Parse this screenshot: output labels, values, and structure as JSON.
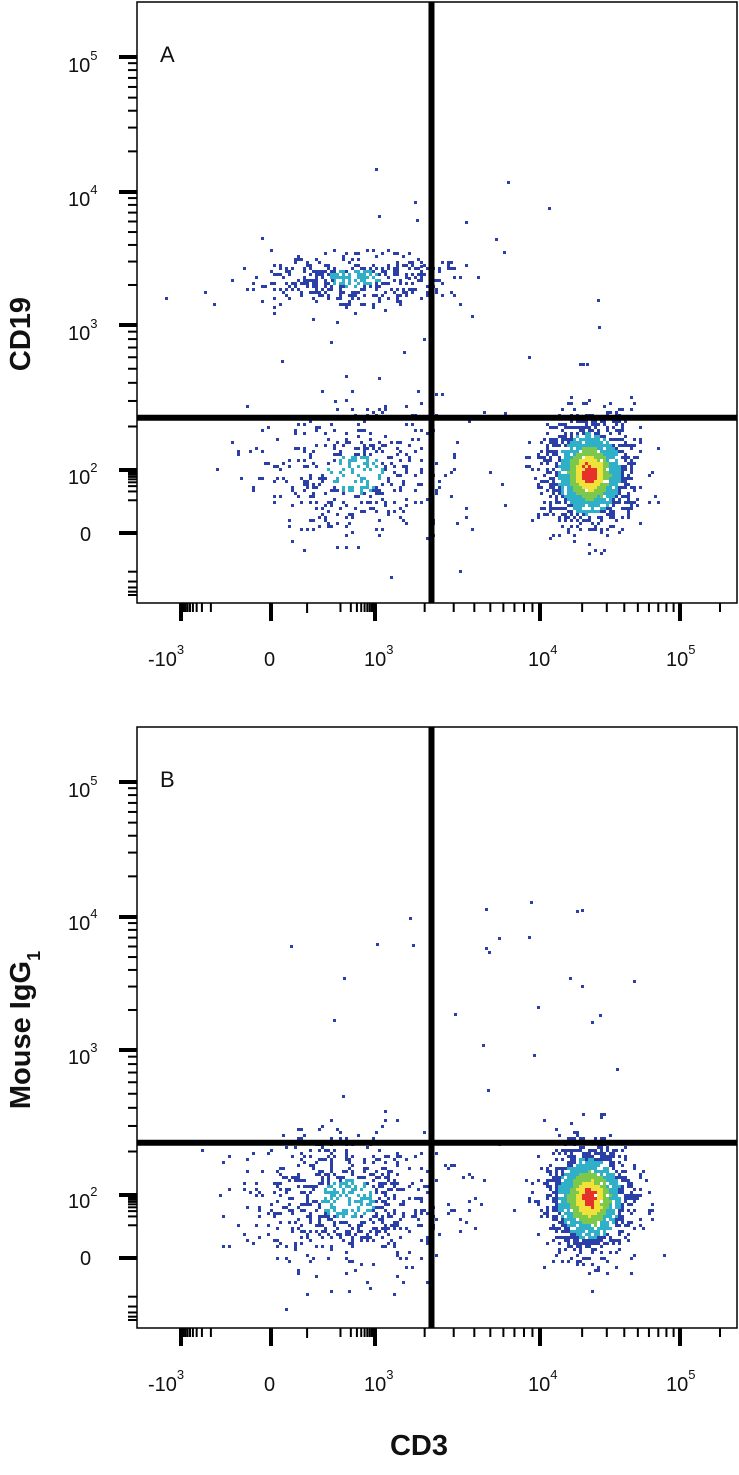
{
  "chart_data": [
    {
      "type": "scatter",
      "panel_label": "A",
      "xlabel": "",
      "ylabel": "CD19",
      "x_scale": "biexponential",
      "y_scale": "biexponential",
      "x_ticks": [
        "-10^3",
        "0",
        "10^3",
        "10^4",
        "10^5"
      ],
      "y_ticks": [
        "0",
        "10^2",
        "10^3",
        "10^4",
        "10^5"
      ],
      "quadrant_gate": {
        "x": 2200,
        "y": 230
      },
      "populations": [
        {
          "cx": 250,
          "cy": 2300,
          "sx": 0.5,
          "sy": 0.22,
          "count": 420
        },
        {
          "cx": 250,
          "cy": 85,
          "sx": 0.5,
          "sy": 0.55,
          "count": 420
        },
        {
          "cx": 22000,
          "cy": 85,
          "sx": 0.22,
          "sy": 0.45,
          "count": 1500
        }
      ]
    },
    {
      "type": "scatter",
      "panel_label": "B",
      "xlabel": "CD3",
      "ylabel": "Mouse IgG",
      "ylabel_subscript": "1",
      "x_scale": "biexponential",
      "y_scale": "biexponential",
      "x_ticks": [
        "-10^3",
        "0",
        "10^3",
        "10^4",
        "10^5"
      ],
      "y_ticks": [
        "0",
        "10^2",
        "10^3",
        "10^4",
        "10^5"
      ],
      "quadrant_gate": {
        "x": 2200,
        "y": 230
      },
      "populations": [
        {
          "cx": 150,
          "cy": 85,
          "sx": 0.5,
          "sy": 0.55,
          "count": 700
        },
        {
          "cx": 22000,
          "cy": 85,
          "sx": 0.22,
          "sy": 0.45,
          "count": 1500
        }
      ]
    }
  ],
  "colors": {
    "frame": "#000000",
    "low": "#2a3fa8",
    "mid": "#2fb0c8",
    "hi1": "#7cc84a",
    "hi2": "#f0e23a",
    "peak": "#e8302a"
  }
}
